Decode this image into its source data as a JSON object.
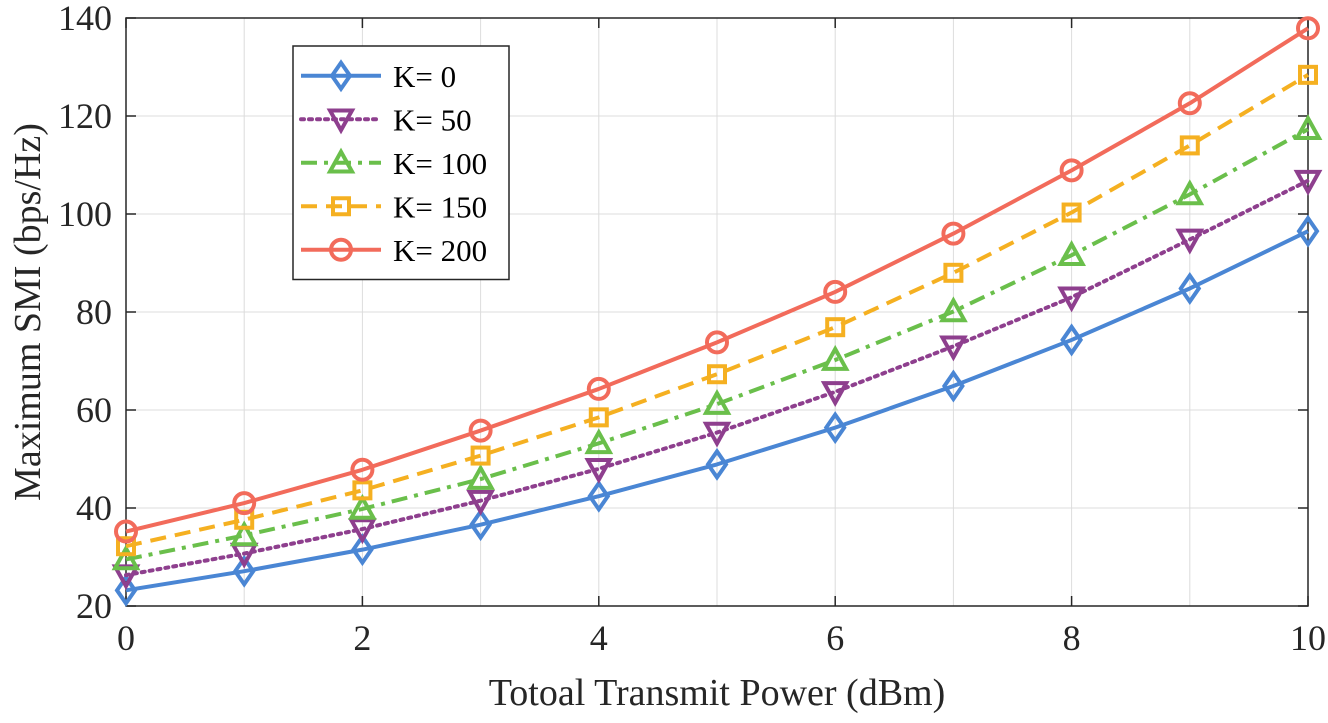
{
  "chart_data": {
    "type": "line",
    "title": "",
    "xlabel": "Totoal Transmit Power (dBm)",
    "ylabel": "Maximum SMI (bps/Hz)",
    "xlim": [
      0,
      10
    ],
    "ylim": [
      20,
      140
    ],
    "xticks": [
      0,
      2,
      4,
      6,
      8,
      10
    ],
    "yticks": [
      20,
      40,
      60,
      80,
      100,
      120,
      140
    ],
    "grid": true,
    "legend_position": "top-left",
    "x": [
      0,
      1,
      2,
      3,
      4,
      5,
      6,
      7,
      8,
      9,
      10
    ],
    "series": [
      {
        "name": "K= 0",
        "color": "#4a86d4",
        "line_style": "solid",
        "marker": "diamond",
        "values": [
          23.2,
          27.1,
          31.5,
          36.6,
          42.4,
          48.9,
          56.4,
          64.9,
          74.3,
          84.8,
          96.5
        ]
      },
      {
        "name": "K= 50",
        "color": "#8e3f8e",
        "line_style": "dotted",
        "marker": "triangle-down",
        "values": [
          26.3,
          30.7,
          35.7,
          41.5,
          48.0,
          55.4,
          63.7,
          73.0,
          83.0,
          94.8,
          106.8
        ]
      },
      {
        "name": "K= 100",
        "color": "#6abf4b",
        "line_style": "dashdot",
        "marker": "triangle-up",
        "values": [
          29.5,
          34.4,
          39.8,
          45.9,
          53.2,
          61.2,
          70.2,
          80.1,
          91.6,
          104.0,
          117.3
        ]
      },
      {
        "name": "K= 150",
        "color": "#f5b021",
        "line_style": "dashed",
        "marker": "square",
        "values": [
          32.2,
          37.6,
          43.6,
          50.7,
          58.5,
          67.3,
          76.9,
          88.0,
          100.3,
          114.0,
          128.4
        ]
      },
      {
        "name": "K= 200",
        "color": "#f26b5b",
        "line_style": "solid",
        "marker": "circle",
        "values": [
          35.2,
          41.0,
          47.8,
          55.8,
          64.3,
          73.8,
          84.1,
          96.0,
          108.9,
          122.6,
          137.9
        ]
      }
    ]
  }
}
